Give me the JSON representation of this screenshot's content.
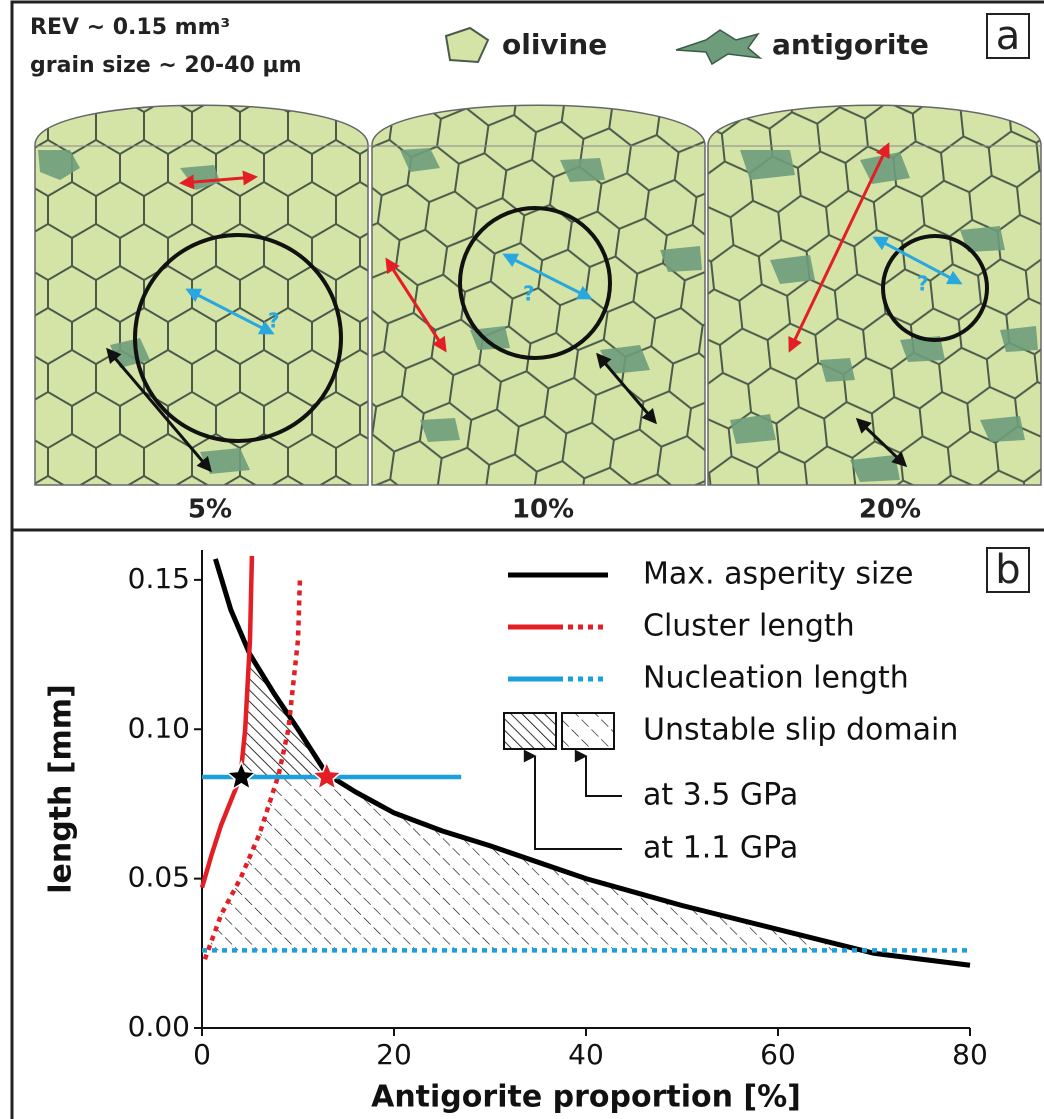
{
  "panel_a": {
    "header": [
      "REV ~ 0.15 mm³",
      "grain size ~ 20-40 µm"
    ],
    "legend": [
      "olivine",
      "antigorite"
    ],
    "label": "a",
    "blocks": [
      {
        "label": "5%",
        "question": "?"
      },
      {
        "label": "10%",
        "question": "?"
      },
      {
        "label": "20%",
        "question": "?"
      }
    ]
  },
  "chart_data": {
    "type": "line",
    "label": "b",
    "xlabel": "Antigorite proportion [%]",
    "ylabel": "length [mm]",
    "xlim": [
      0,
      80
    ],
    "ylim": [
      0,
      0.16
    ],
    "xticks": [
      0,
      20,
      40,
      60,
      80
    ],
    "yticks": [
      {
        "value": 0,
        "label": "0.00"
      },
      0.05,
      {
        "value": 0.1,
        "label": "0.10"
      },
      0.15
    ],
    "series": [
      {
        "name": "Max. asperity size",
        "color": "#000000",
        "lines": [
          {
            "dash": "solid",
            "x": [
              1.4,
              3,
              5,
              7.5,
              10,
              13,
              16,
              20,
              25,
              30,
              40,
              50,
              60,
              70,
              80
            ],
            "values": [
              0.157,
              0.14,
              0.125,
              0.112,
              0.1,
              0.085,
              0.079,
              0.072,
              0.066,
              0.061,
              0.05,
              0.041,
              0.033,
              0.025,
              0.021
            ]
          }
        ]
      },
      {
        "name": "Cluster length",
        "color": "#e31e24",
        "lines": [
          {
            "dash": "solid",
            "x": [
              0,
              1,
              2,
              3,
              4,
              4.5,
              5,
              5.2
            ],
            "values": [
              0.047,
              0.058,
              0.068,
              0.076,
              0.084,
              0.1,
              0.13,
              0.158
            ]
          },
          {
            "dash": "dotted",
            "x": [
              0.3,
              2,
              4,
              6,
              8,
              9,
              10,
              10.2
            ],
            "values": [
              0.023,
              0.038,
              0.05,
              0.065,
              0.085,
              0.1,
              0.13,
              0.15
            ]
          }
        ]
      },
      {
        "name": "Nucleation length",
        "color": "#1ba0dc",
        "lines": [
          {
            "dash": "solid",
            "x": [
              0,
              27
            ],
            "values": [
              0.084,
              0.084
            ]
          },
          {
            "dash": "dotted",
            "x": [
              0,
              80
            ],
            "values": [
              0.026,
              0.026
            ]
          }
        ]
      }
    ],
    "domain": {
      "name": "Unstable slip domain",
      "notes": [
        "at 3.5 GPa",
        "at 1.1 GPa"
      ]
    },
    "markers": [
      {
        "x": 4.1,
        "y": 0.084,
        "color": "#000000"
      },
      {
        "x": 13,
        "y": 0.084,
        "color": "#e31e24"
      }
    ]
  }
}
